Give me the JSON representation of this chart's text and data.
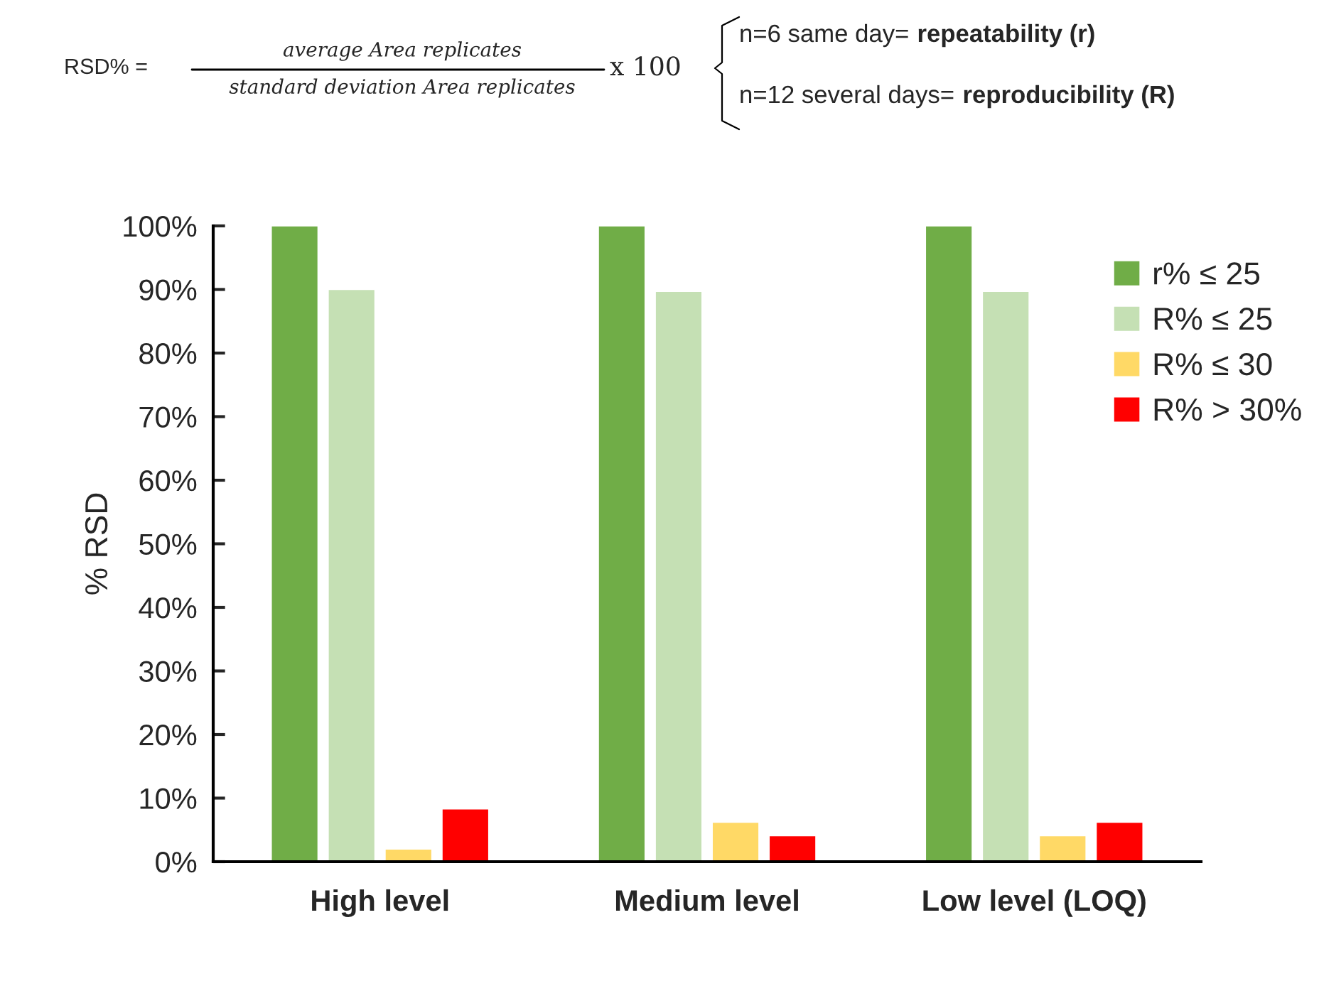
{
  "chart_data": {
    "type": "bar",
    "categories": [
      "High level",
      "Medium level",
      "Low level (LOQ)"
    ],
    "series": [
      {
        "name": "r% ≤ 25",
        "color": "#70ad47",
        "values": [
          100,
          100,
          100
        ]
      },
      {
        "name": "R% ≤ 25",
        "color": "#c5e0b4",
        "values": [
          90,
          89.7,
          89.7
        ]
      },
      {
        "name": "R% ≤ 30",
        "color": "#ffd966",
        "values": [
          2,
          6.2,
          4.1
        ]
      },
      {
        "name": "R% > 30%",
        "color": "#ff0000",
        "values": [
          8.3,
          4.1,
          6.2
        ]
      }
    ],
    "ylabel": "% RSD",
    "ylim": [
      0,
      100
    ],
    "yticks": [
      {
        "value": 0,
        "label": "0%"
      },
      {
        "value": 10,
        "label": "10%"
      },
      {
        "value": 20,
        "label": "20%"
      },
      {
        "value": 30,
        "label": "30%"
      },
      {
        "value": 40,
        "label": "40%"
      },
      {
        "value": 50,
        "label": "50%"
      },
      {
        "value": 60,
        "label": "60%"
      },
      {
        "value": 70,
        "label": "70%"
      },
      {
        "value": 80,
        "label": "80%"
      },
      {
        "value": 90,
        "label": "90%"
      },
      {
        "value": 100,
        "label": "100%"
      }
    ],
    "grid": false,
    "legend": "top right",
    "annotations": [
      "RSD% =",
      "average Area replicates",
      "standard deviation Area replicates",
      "x 100",
      "n=6 same day= ",
      "repeatability (r)",
      "n=12 several days= ",
      "reproducibility (R)"
    ]
  }
}
